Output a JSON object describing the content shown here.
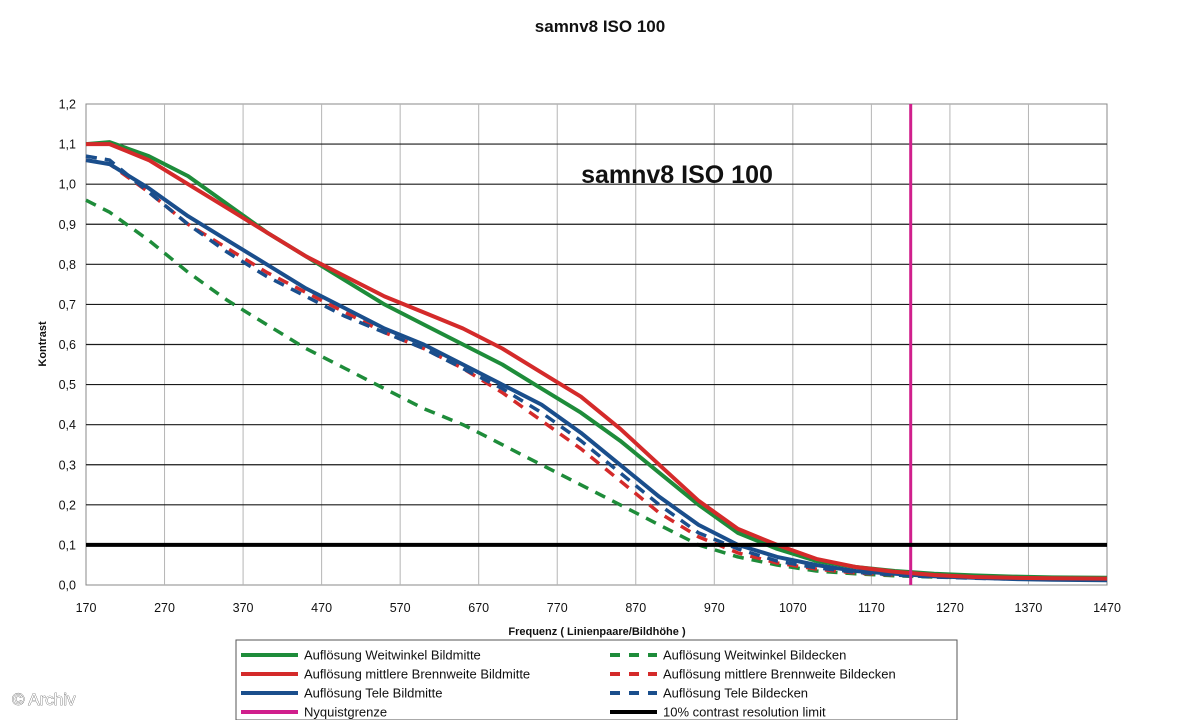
{
  "chart_data": {
    "type": "line",
    "title": "samnv8 ISO 100",
    "inner_title": "samnv8 ISO 100",
    "xlabel": "Frequenz ( Linienpaare/Bildhöhe )",
    "ylabel": "Kontrast",
    "xlim": [
      170,
      1470
    ],
    "ylim": [
      0,
      1.2
    ],
    "x_ticks": [
      "170",
      "270",
      "370",
      "470",
      "570",
      "670",
      "770",
      "870",
      "970",
      "1070",
      "1170",
      "1270",
      "1370",
      "1470"
    ],
    "y_ticks": [
      "0,0",
      "0,1",
      "0,2",
      "0,3",
      "0,4",
      "0,5",
      "0,6",
      "0,7",
      "0,8",
      "0,9",
      "1,0",
      "1,1",
      "1,2"
    ],
    "grid": "horizontal and vertical",
    "legend_position": "bottom",
    "series": [
      {
        "name": "Auflösung Weitwinkel Bildmitte",
        "color": "#1e8c3a",
        "style": "solid",
        "points": [
          [
            170,
            1.1
          ],
          [
            200,
            1.105
          ],
          [
            250,
            1.07
          ],
          [
            300,
            1.02
          ],
          [
            350,
            0.95
          ],
          [
            400,
            0.88
          ],
          [
            450,
            0.82
          ],
          [
            500,
            0.76
          ],
          [
            550,
            0.7
          ],
          [
            600,
            0.65
          ],
          [
            650,
            0.6
          ],
          [
            700,
            0.55
          ],
          [
            750,
            0.49
          ],
          [
            800,
            0.43
          ],
          [
            850,
            0.36
          ],
          [
            900,
            0.28
          ],
          [
            950,
            0.2
          ],
          [
            1000,
            0.13
          ],
          [
            1050,
            0.09
          ],
          [
            1100,
            0.06
          ],
          [
            1150,
            0.045
          ],
          [
            1200,
            0.035
          ],
          [
            1250,
            0.028
          ],
          [
            1300,
            0.024
          ],
          [
            1350,
            0.021
          ],
          [
            1400,
            0.019
          ],
          [
            1470,
            0.018
          ]
        ]
      },
      {
        "name": "Auflösung mittlere Brennweite Bildmitte",
        "color": "#d42a2a",
        "style": "solid",
        "points": [
          [
            170,
            1.1
          ],
          [
            200,
            1.1
          ],
          [
            250,
            1.06
          ],
          [
            300,
            1.0
          ],
          [
            350,
            0.94
          ],
          [
            400,
            0.88
          ],
          [
            450,
            0.82
          ],
          [
            500,
            0.77
          ],
          [
            550,
            0.72
          ],
          [
            600,
            0.68
          ],
          [
            650,
            0.64
          ],
          [
            700,
            0.59
          ],
          [
            750,
            0.53
          ],
          [
            800,
            0.47
          ],
          [
            850,
            0.39
          ],
          [
            900,
            0.3
          ],
          [
            950,
            0.21
          ],
          [
            1000,
            0.14
          ],
          [
            1050,
            0.1
          ],
          [
            1100,
            0.065
          ],
          [
            1150,
            0.045
          ],
          [
            1200,
            0.033
          ],
          [
            1250,
            0.025
          ],
          [
            1300,
            0.02
          ],
          [
            1350,
            0.018
          ],
          [
            1400,
            0.017
          ],
          [
            1470,
            0.016
          ]
        ]
      },
      {
        "name": "Auflösung Tele Bildmitte",
        "color": "#1a4e8c",
        "style": "solid",
        "points": [
          [
            170,
            1.06
          ],
          [
            200,
            1.05
          ],
          [
            250,
            0.99
          ],
          [
            300,
            0.92
          ],
          [
            350,
            0.86
          ],
          [
            400,
            0.8
          ],
          [
            450,
            0.74
          ],
          [
            500,
            0.69
          ],
          [
            550,
            0.64
          ],
          [
            600,
            0.6
          ],
          [
            650,
            0.55
          ],
          [
            700,
            0.5
          ],
          [
            750,
            0.45
          ],
          [
            800,
            0.38
          ],
          [
            850,
            0.3
          ],
          [
            900,
            0.22
          ],
          [
            950,
            0.15
          ],
          [
            1000,
            0.1
          ],
          [
            1050,
            0.07
          ],
          [
            1100,
            0.05
          ],
          [
            1150,
            0.035
          ],
          [
            1200,
            0.028
          ],
          [
            1250,
            0.022
          ],
          [
            1300,
            0.018
          ],
          [
            1350,
            0.015
          ],
          [
            1400,
            0.013
          ],
          [
            1470,
            0.012
          ]
        ]
      },
      {
        "name": "Nyquistgrenze",
        "color": "#d01f8c",
        "style": "solid",
        "points": [
          [
            1220,
            0
          ],
          [
            1220,
            1.2
          ]
        ]
      },
      {
        "name": "Auflösung Weitwinkel Bildecken",
        "color": "#1e8c3a",
        "style": "dashed",
        "points": [
          [
            170,
            0.96
          ],
          [
            200,
            0.93
          ],
          [
            250,
            0.86
          ],
          [
            300,
            0.78
          ],
          [
            350,
            0.71
          ],
          [
            400,
            0.65
          ],
          [
            450,
            0.59
          ],
          [
            500,
            0.54
          ],
          [
            550,
            0.49
          ],
          [
            600,
            0.44
          ],
          [
            650,
            0.4
          ],
          [
            700,
            0.35
          ],
          [
            750,
            0.3
          ],
          [
            800,
            0.25
          ],
          [
            850,
            0.2
          ],
          [
            900,
            0.15
          ],
          [
            950,
            0.1
          ],
          [
            1000,
            0.07
          ],
          [
            1050,
            0.05
          ],
          [
            1100,
            0.035
          ],
          [
            1150,
            0.028
          ],
          [
            1200,
            0.023
          ],
          [
            1250,
            0.02
          ],
          [
            1300,
            0.018
          ],
          [
            1350,
            0.016
          ],
          [
            1400,
            0.015
          ],
          [
            1470,
            0.014
          ]
        ]
      },
      {
        "name": "Auflösung mittlere Brennweite Bildecken",
        "color": "#d42a2a",
        "style": "dashed",
        "points": [
          [
            170,
            1.06
          ],
          [
            200,
            1.05
          ],
          [
            250,
            0.98
          ],
          [
            300,
            0.9
          ],
          [
            350,
            0.84
          ],
          [
            400,
            0.78
          ],
          [
            450,
            0.73
          ],
          [
            500,
            0.68
          ],
          [
            550,
            0.63
          ],
          [
            600,
            0.59
          ],
          [
            650,
            0.54
          ],
          [
            700,
            0.48
          ],
          [
            750,
            0.41
          ],
          [
            800,
            0.34
          ],
          [
            850,
            0.26
          ],
          [
            900,
            0.18
          ],
          [
            950,
            0.12
          ],
          [
            1000,
            0.08
          ],
          [
            1050,
            0.055
          ],
          [
            1100,
            0.04
          ],
          [
            1150,
            0.03
          ],
          [
            1200,
            0.025
          ],
          [
            1250,
            0.021
          ],
          [
            1300,
            0.018
          ],
          [
            1350,
            0.016
          ],
          [
            1400,
            0.015
          ],
          [
            1470,
            0.014
          ]
        ]
      },
      {
        "name": "Auflösung Tele Bildecken",
        "color": "#1a4e8c",
        "style": "dashed",
        "points": [
          [
            170,
            1.07
          ],
          [
            200,
            1.06
          ],
          [
            250,
            0.98
          ],
          [
            300,
            0.9
          ],
          [
            350,
            0.83
          ],
          [
            400,
            0.77
          ],
          [
            450,
            0.72
          ],
          [
            500,
            0.67
          ],
          [
            550,
            0.63
          ],
          [
            600,
            0.59
          ],
          [
            650,
            0.54
          ],
          [
            700,
            0.49
          ],
          [
            750,
            0.43
          ],
          [
            800,
            0.36
          ],
          [
            850,
            0.28
          ],
          [
            900,
            0.2
          ],
          [
            950,
            0.13
          ],
          [
            1000,
            0.09
          ],
          [
            1050,
            0.06
          ],
          [
            1100,
            0.043
          ],
          [
            1150,
            0.032
          ],
          [
            1200,
            0.025
          ],
          [
            1250,
            0.02
          ],
          [
            1300,
            0.017
          ],
          [
            1350,
            0.015
          ],
          [
            1400,
            0.014
          ],
          [
            1470,
            0.013
          ]
        ]
      },
      {
        "name": "10% contrast resolution limit",
        "color": "#000000",
        "style": "solid",
        "points": [
          [
            170,
            0.1
          ],
          [
            1470,
            0.1
          ]
        ]
      }
    ]
  },
  "watermark": "© Archiv"
}
